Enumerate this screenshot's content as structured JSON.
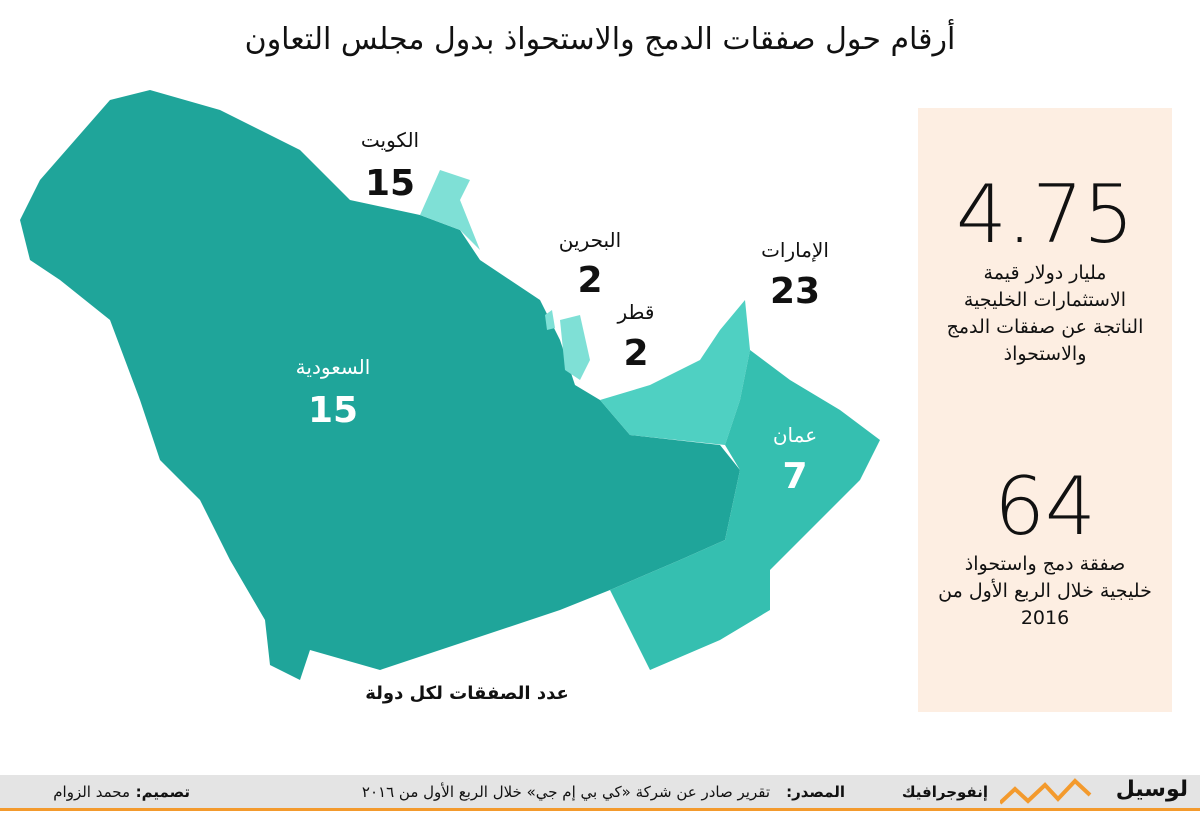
{
  "title": "أرقام حول صفقات الدمج والاستحواذ بدول مجلس التعاون",
  "countries": [
    {
      "name": "الكويت",
      "deals": 15
    },
    {
      "name": "البحرين",
      "deals": 2
    },
    {
      "name": "قطر",
      "deals": 2
    },
    {
      "name": "الإمارات",
      "deals": 23
    },
    {
      "name": "السعودية",
      "deals": 15
    },
    {
      "name": "عمان",
      "deals": 7
    }
  ],
  "map_caption": "عدد الصفقات لكل دولة",
  "stats": [
    {
      "value": 4.75,
      "text": "مليار دولار قيمة الاستثمارات الخليجية الناتجة عن صفقات الدمج والاستحواذ"
    },
    {
      "value": 64,
      "text": "صفقة دمج واستحواذ خليجية خلال الربع الأول من 2016"
    }
  ],
  "footer": {
    "brand": "لوسيل",
    "section": "إنفوجرافيك",
    "source_label": "المصدر:",
    "source": "تقرير صادر عن شركة «كي بي إم جي» خلال الربع الأول من ٢٠١٦",
    "design_label": "تصميم:",
    "designer": "محمد الزوام"
  }
}
